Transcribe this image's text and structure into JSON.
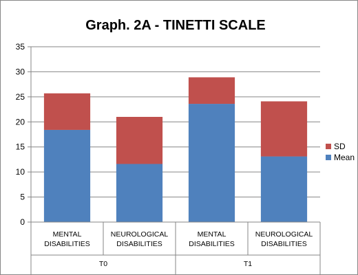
{
  "chart_data": {
    "type": "bar",
    "stacked": true,
    "title": "Graph. 2A - TINETTI SCALE",
    "xlabel": "",
    "ylabel": "",
    "ylim": [
      0,
      35
    ],
    "yticks": [
      0,
      5,
      10,
      15,
      20,
      25,
      30,
      35
    ],
    "grid": true,
    "legend_position": "right",
    "groups": [
      {
        "label": "T0",
        "categories": [
          "MENTAL DISABILITIES",
          "NEUROLOGICAL DISABILITIES"
        ]
      },
      {
        "label": "T1",
        "categories": [
          "MENTAL DISABILITIES",
          "NEUROLOGICAL DISABILITIES"
        ]
      }
    ],
    "categories": [
      [
        "MENTAL",
        "DISABILITIES"
      ],
      [
        "NEUROLOGICAL",
        "DISABILITIES"
      ],
      [
        "MENTAL",
        "DISABILITIES"
      ],
      [
        "NEUROLOGICAL",
        "DISABILITIES"
      ]
    ],
    "series": [
      {
        "name": "Mean",
        "color": "#4f81bd",
        "values": [
          18.4,
          11.6,
          23.6,
          13.1
        ]
      },
      {
        "name": "SD",
        "color": "#c0504d",
        "values": [
          7.3,
          9.4,
          5.3,
          11.0
        ]
      }
    ],
    "legend": [
      {
        "name": "SD",
        "color": "#c0504d"
      },
      {
        "name": "Mean",
        "color": "#4f81bd"
      }
    ]
  }
}
